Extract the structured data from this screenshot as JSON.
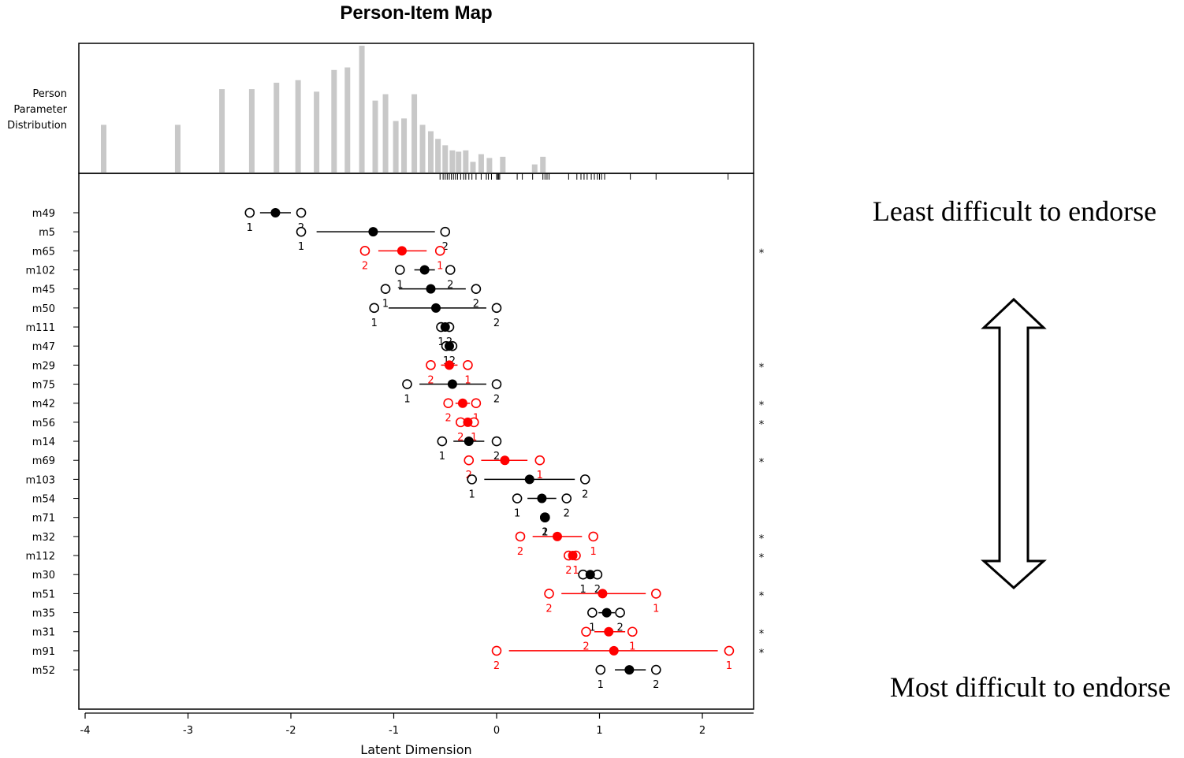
{
  "chart_data": {
    "type": "scatter",
    "title": "Person-Item Map",
    "xlabel": "Latent Dimension",
    "xlim": [
      -4,
      2.5
    ],
    "x_ticks": [
      -4,
      -3,
      -2,
      -1,
      0,
      1,
      2
    ],
    "distribution_label": [
      "Person",
      "Parameter",
      "Distribution"
    ],
    "person_distribution": [
      {
        "x": -3.82,
        "h": 0.38
      },
      {
        "x": -3.1,
        "h": 0.38
      },
      {
        "x": -2.67,
        "h": 0.66
      },
      {
        "x": -2.38,
        "h": 0.66
      },
      {
        "x": -2.14,
        "h": 0.71
      },
      {
        "x": -1.93,
        "h": 0.73
      },
      {
        "x": -1.75,
        "h": 0.64
      },
      {
        "x": -1.58,
        "h": 0.81
      },
      {
        "x": -1.45,
        "h": 0.83
      },
      {
        "x": -1.31,
        "h": 1.0
      },
      {
        "x": -1.18,
        "h": 0.57
      },
      {
        "x": -1.08,
        "h": 0.62
      },
      {
        "x": -0.98,
        "h": 0.41
      },
      {
        "x": -0.9,
        "h": 0.43
      },
      {
        "x": -0.8,
        "h": 0.62
      },
      {
        "x": -0.72,
        "h": 0.38
      },
      {
        "x": -0.64,
        "h": 0.33
      },
      {
        "x": -0.57,
        "h": 0.27
      },
      {
        "x": -0.5,
        "h": 0.22
      },
      {
        "x": -0.43,
        "h": 0.18
      },
      {
        "x": -0.37,
        "h": 0.17
      },
      {
        "x": -0.3,
        "h": 0.18
      },
      {
        "x": -0.23,
        "h": 0.09
      },
      {
        "x": -0.15,
        "h": 0.15
      },
      {
        "x": -0.07,
        "h": 0.12
      },
      {
        "x": 0.06,
        "h": 0.13
      },
      {
        "x": 0.37,
        "h": 0.07
      },
      {
        "x": 0.45,
        "h": 0.13
      }
    ],
    "rug": [
      -0.55,
      -0.52,
      -0.5,
      -0.48,
      -0.46,
      -0.44,
      -0.42,
      -0.4,
      -0.38,
      -0.35,
      -0.32,
      -0.3,
      -0.27,
      -0.24,
      -0.2,
      -0.15,
      -0.1,
      -0.08,
      -0.05,
      0.0,
      0.01,
      0.02,
      0.03,
      0.2,
      0.25,
      0.35,
      0.45,
      0.47,
      0.49,
      0.51,
      0.7,
      0.78,
      0.82,
      0.85,
      0.88,
      0.92,
      0.95,
      0.98,
      1.0,
      1.02,
      1.05,
      1.3,
      1.55,
      2.25
    ],
    "items": [
      {
        "name": "m49",
        "misfit": false,
        "loc": -2.15,
        "t1": -2.4,
        "t2": -1.9,
        "lo": -2.3,
        "hi": -2.0
      },
      {
        "name": "m5",
        "misfit": false,
        "loc": -1.2,
        "t1": -1.9,
        "t2": -0.5,
        "lo": -1.75,
        "hi": -0.6
      },
      {
        "name": "m65",
        "misfit": true,
        "loc": -0.92,
        "t1": -0.55,
        "t2": -1.28,
        "lo": -1.15,
        "hi": -0.68
      },
      {
        "name": "m102",
        "misfit": false,
        "loc": -0.7,
        "t1": -0.94,
        "t2": -0.45,
        "lo": -0.8,
        "hi": -0.6
      },
      {
        "name": "m45",
        "misfit": false,
        "loc": -0.64,
        "t1": -1.08,
        "t2": -0.2,
        "lo": -0.95,
        "hi": -0.3
      },
      {
        "name": "m50",
        "misfit": false,
        "loc": -0.59,
        "t1": -1.19,
        "t2": 0.0,
        "lo": -1.05,
        "hi": -0.1
      },
      {
        "name": "m111",
        "misfit": false,
        "loc": -0.5,
        "t1": -0.54,
        "t2": -0.46,
        "lo": -0.55,
        "hi": -0.45
      },
      {
        "name": "m47",
        "misfit": false,
        "loc": -0.46,
        "t1": -0.49,
        "t2": -0.43,
        "lo": -0.5,
        "hi": -0.42
      },
      {
        "name": "m29",
        "misfit": true,
        "loc": -0.46,
        "t1": -0.28,
        "t2": -0.64,
        "lo": -0.54,
        "hi": -0.38
      },
      {
        "name": "m75",
        "misfit": false,
        "loc": -0.43,
        "t1": -0.87,
        "t2": 0.0,
        "lo": -0.75,
        "hi": -0.1
      },
      {
        "name": "m42",
        "misfit": true,
        "loc": -0.33,
        "t1": -0.2,
        "t2": -0.47,
        "lo": -0.4,
        "hi": -0.26
      },
      {
        "name": "m56",
        "misfit": true,
        "loc": -0.28,
        "t1": -0.22,
        "t2": -0.35,
        "lo": -0.32,
        "hi": -0.24
      },
      {
        "name": "m14",
        "misfit": false,
        "loc": -0.27,
        "t1": -0.53,
        "t2": 0.0,
        "lo": -0.42,
        "hi": -0.12
      },
      {
        "name": "m69",
        "misfit": true,
        "loc": 0.08,
        "t1": 0.42,
        "t2": -0.27,
        "lo": -0.15,
        "hi": 0.3
      },
      {
        "name": "m103",
        "misfit": false,
        "loc": 0.32,
        "t1": -0.24,
        "t2": 0.86,
        "lo": -0.12,
        "hi": 0.76
      },
      {
        "name": "m54",
        "misfit": false,
        "loc": 0.44,
        "t1": 0.2,
        "t2": 0.68,
        "lo": 0.3,
        "hi": 0.58
      },
      {
        "name": "m71",
        "misfit": false,
        "loc": 0.47,
        "t1": 0.47,
        "t2": 0.47,
        "lo": 0.47,
        "hi": 0.47
      },
      {
        "name": "m32",
        "misfit": true,
        "loc": 0.59,
        "t1": 0.94,
        "t2": 0.23,
        "lo": 0.35,
        "hi": 0.83
      },
      {
        "name": "m112",
        "misfit": true,
        "loc": 0.74,
        "t1": 0.77,
        "t2": 0.7,
        "lo": 0.71,
        "hi": 0.77
      },
      {
        "name": "m30",
        "misfit": false,
        "loc": 0.91,
        "t1": 0.84,
        "t2": 0.98,
        "lo": 0.86,
        "hi": 0.96
      },
      {
        "name": "m51",
        "misfit": true,
        "loc": 1.03,
        "t1": 1.55,
        "t2": 0.51,
        "lo": 0.63,
        "hi": 1.45
      },
      {
        "name": "m35",
        "misfit": false,
        "loc": 1.07,
        "t1": 0.93,
        "t2": 1.2,
        "lo": 0.99,
        "hi": 1.15
      },
      {
        "name": "m31",
        "misfit": true,
        "loc": 1.09,
        "t1": 1.32,
        "t2": 0.87,
        "lo": 0.95,
        "hi": 1.25
      },
      {
        "name": "m91",
        "misfit": true,
        "loc": 1.14,
        "t1": 2.26,
        "t2": 0.0,
        "lo": 0.12,
        "hi": 2.15
      },
      {
        "name": "m52",
        "misfit": false,
        "loc": 1.29,
        "t1": 1.01,
        "t2": 1.55,
        "lo": 1.15,
        "hi": 1.45
      }
    ],
    "threshold_labels": [
      "1",
      "2"
    ],
    "misfit_marker": "*",
    "colors": {
      "fit": "#000000",
      "misfit": "#ff0000",
      "histogram": "#c8c8c8"
    }
  },
  "annotations": {
    "top": "Least difficult to endorse",
    "bottom": "Most difficult to endorse"
  }
}
